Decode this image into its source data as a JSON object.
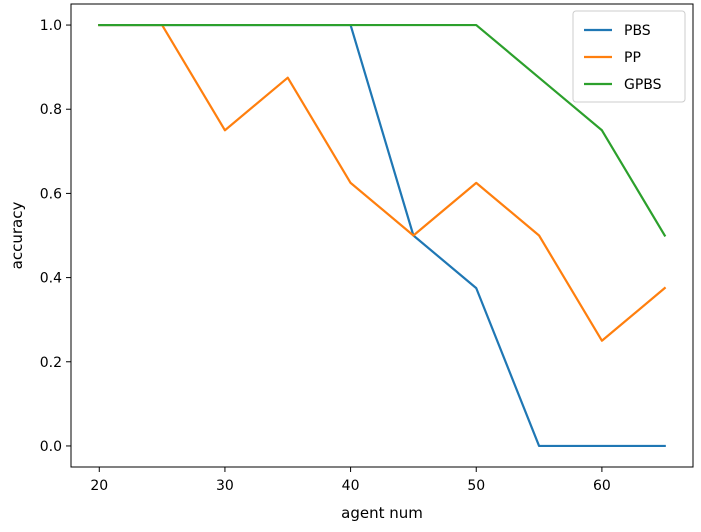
{
  "chart_data": {
    "type": "line",
    "title": "",
    "xlabel": "agent num",
    "ylabel": "accuracy",
    "x": [
      20,
      25,
      30,
      35,
      40,
      45,
      50,
      55,
      60,
      65
    ],
    "xlim": [
      17.75,
      67.25
    ],
    "ylim": [
      -0.05,
      1.05
    ],
    "xticks": [
      20,
      30,
      40,
      50,
      60
    ],
    "yticks": [
      0.0,
      0.2,
      0.4,
      0.6,
      0.8,
      1.0
    ],
    "xtick_labels": [
      "20",
      "30",
      "40",
      "50",
      "60"
    ],
    "ytick_labels": [
      "0.0",
      "0.2",
      "0.4",
      "0.6",
      "0.8",
      "1.0"
    ],
    "grid": false,
    "legend_position": "top-right",
    "series": [
      {
        "name": "PBS",
        "color": "#1f77b4",
        "values": [
          1.0,
          1.0,
          1.0,
          1.0,
          1.0,
          0.5,
          0.375,
          0.0,
          0.0,
          0.0
        ]
      },
      {
        "name": "PP",
        "color": "#ff7f0e",
        "values": [
          1.0,
          1.0,
          0.75,
          0.875,
          0.625,
          0.5,
          0.625,
          0.5,
          0.25,
          0.375
        ]
      },
      {
        "name": "GPBS",
        "color": "#2ca02c",
        "values": [
          1.0,
          1.0,
          1.0,
          1.0,
          1.0,
          1.0,
          1.0,
          0.875,
          0.75,
          0.5
        ]
      }
    ]
  }
}
